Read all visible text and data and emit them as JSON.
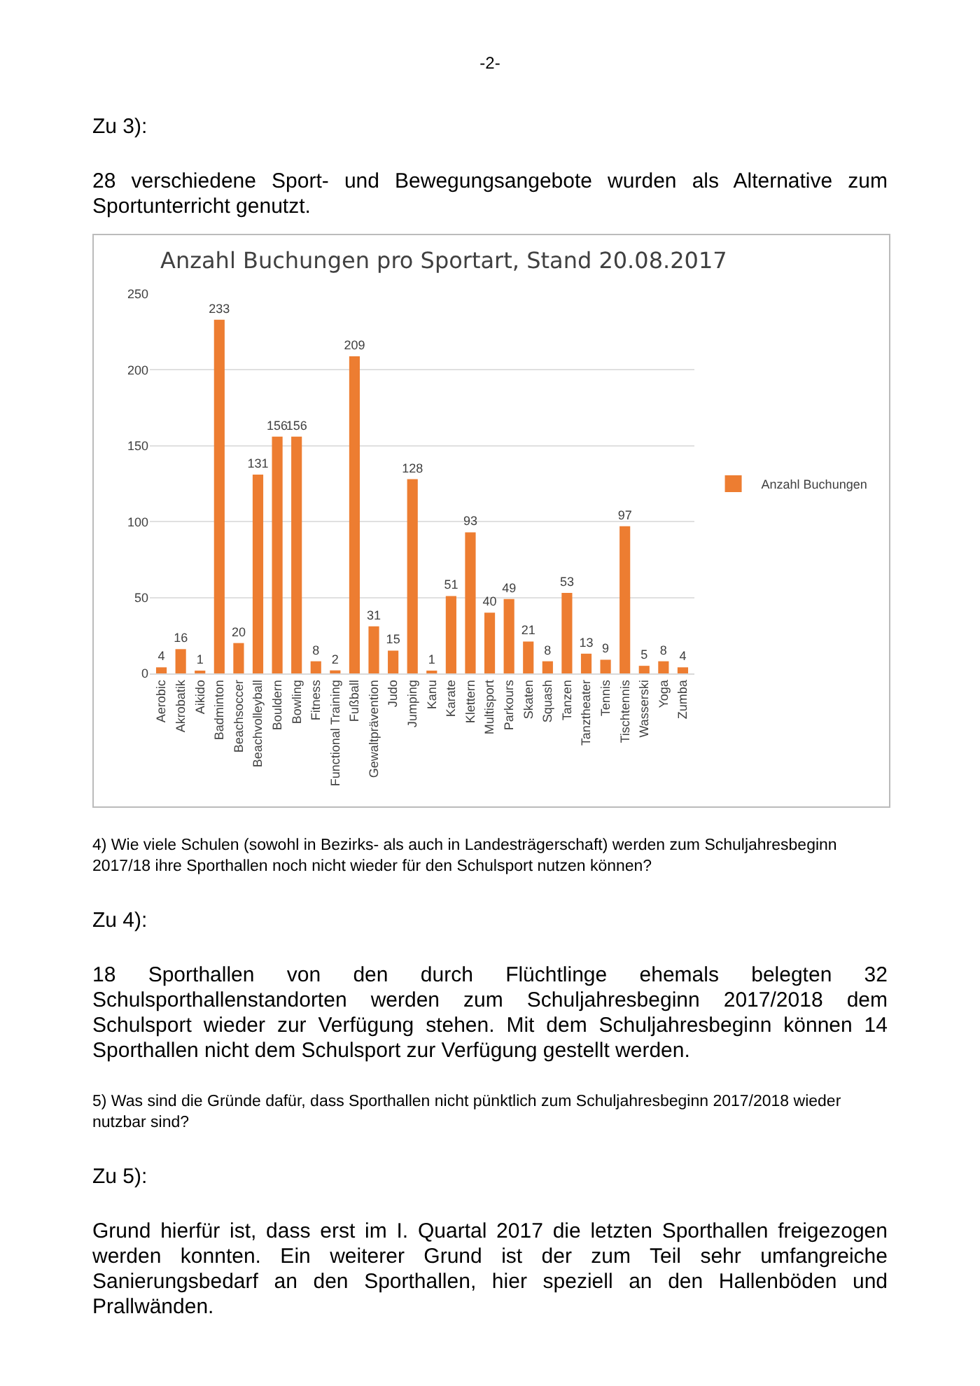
{
  "chart_data": {
    "type": "bar",
    "title": "Anzahl Buchungen pro Sportart, Stand 20.08.2017",
    "categories": [
      "Aerobic",
      "Akrobatik",
      "Aikido",
      "Badminton",
      "Beachsoccer",
      "Beachvolleyball",
      "Bouldern",
      "Bowling",
      "Fitness",
      "Functional Training",
      "Fußball",
      "Gewaltprävention",
      "Judo",
      "Jumping",
      "Kanu",
      "Karate",
      "Klettern",
      "Multisport",
      "Parkours",
      "Skaten",
      "Squash",
      "Tanzen",
      "Tanztheater",
      "Tennis",
      "Tischtennis",
      "Wasserski",
      "Yoga",
      "Zumba"
    ],
    "series": [
      {
        "name": "Anzahl Buchungen",
        "color": "#ed7d31",
        "values": [
          4,
          16,
          1,
          233,
          20,
          131,
          156,
          156,
          8,
          2,
          209,
          31,
          15,
          128,
          1,
          51,
          93,
          40,
          49,
          21,
          8,
          53,
          13,
          9,
          97,
          5,
          8,
          4
        ]
      }
    ],
    "ylim": [
      0,
      250
    ],
    "yticks": [
      0,
      50,
      100,
      150,
      200,
      250
    ],
    "grid": "y",
    "legend": "right",
    "data_labels": true,
    "annotations": [
      "-2-",
      "Zu 3):",
      "28 verschiedene Sport- und Bewegungsangebote wurden als Alternative zum Sportunterricht genutzt.",
      "4) Wie viele Schulen (sowohl in Bezirks- als auch in Landesträgerschaft) werden zum Schuljahresbeginn 2017/18 ihre Sporthallen noch nicht wieder für den Schulsport nutzen können?",
      "Zu 4):",
      "18 Sporthallen von den durch Flüchtlinge ehemals belegten 32 Schulsporthallenstandorten werden zum Schuljahresbeginn 2017/2018 dem Schulsport wieder zur Verfügung stehen. Mit dem Schuljahresbeginn können 14 Sporthallen nicht dem Schulsport zur Verfügung gestellt werden.",
      "5) Was sind die Gründe dafür, dass Sporthallen nicht pünktlich zum Schuljahresbeginn 2017/2018 wieder nutzbar sind?",
      "Zu 5):",
      "Grund hierfür ist, dass erst im I. Quartal 2017 die letzten Sporthallen freigezogen werden konnten. Ein weiterer Grund ist der zum Teil sehr umfangreiche Sanierungsbedarf an den Sporthallen, hier speziell an den Hallenböden und Prallwänden."
    ]
  }
}
